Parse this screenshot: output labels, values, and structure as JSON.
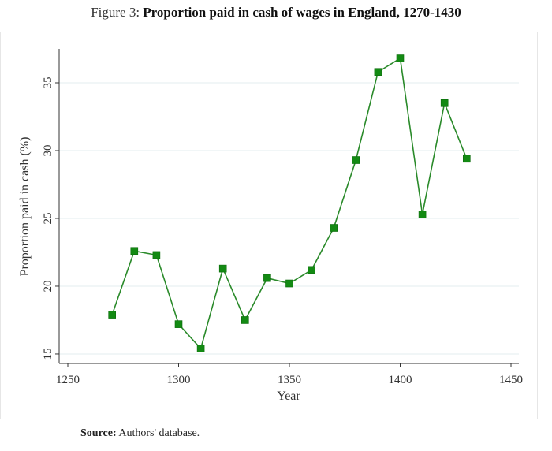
{
  "caption": {
    "figure_number": "Figure 3:",
    "title": "Proportion paid in cash of wages in England, 1270-1430"
  },
  "source": {
    "label": "Source:",
    "text": "Authors' database."
  },
  "chart_data": {
    "type": "line",
    "title": "",
    "xlabel": "Year",
    "ylabel": "Proportion paid in cash (%)",
    "xlim": [
      1250,
      1450
    ],
    "ylim": [
      14.3,
      37.5
    ],
    "xticks": [
      1250,
      1300,
      1350,
      1400,
      1450
    ],
    "yticks": [
      15,
      20,
      25,
      30,
      35
    ],
    "grid": true,
    "legend": "none",
    "colors": {
      "series": "#138a13",
      "line": "#2a8a2a",
      "grid": "#e3ecef"
    },
    "series": [
      {
        "x": [
          1270,
          1280,
          1290,
          1300,
          1310,
          1320,
          1330,
          1340,
          1350,
          1360,
          1370,
          1380,
          1390,
          1400,
          1410,
          1420,
          1430
        ],
        "values": [
          17.9,
          22.6,
          22.3,
          17.2,
          15.4,
          21.3,
          17.5,
          20.6,
          20.2,
          21.2,
          24.3,
          29.3,
          35.8,
          36.8,
          25.3,
          33.5,
          29.4
        ]
      }
    ]
  }
}
